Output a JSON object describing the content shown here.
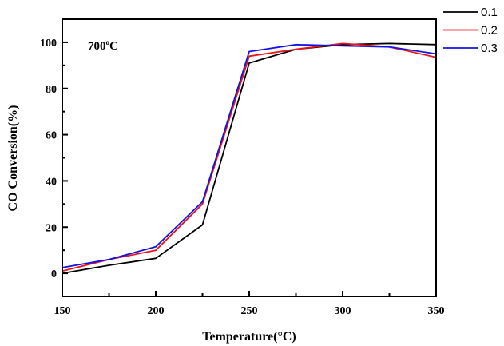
{
  "chart_data": {
    "type": "line",
    "title": "",
    "annotation": "700°C",
    "annotation_parts": {
      "base": "700",
      "sup": "o",
      "unit": "C"
    },
    "xlabel": "Temperature(°C)",
    "xlabel_parts": {
      "base": "Temperature(",
      "sup": "o",
      "unit": "C)"
    },
    "ylabel": "CO Conversion(%)",
    "xlim": [
      150,
      350
    ],
    "ylim": [
      -10,
      110
    ],
    "xticks": [
      150,
      200,
      250,
      300,
      350
    ],
    "xminor": [
      175,
      225,
      275,
      325
    ],
    "yticks": [
      0,
      20,
      40,
      60,
      80,
      100
    ],
    "yminor": [
      10,
      30,
      50,
      70,
      90
    ],
    "grid": false,
    "legend_position": "top-right-outside",
    "x": [
      150,
      175,
      200,
      225,
      250,
      275,
      300,
      325,
      350
    ],
    "series": [
      {
        "name": "0.1",
        "color": "#000000",
        "values": [
          0,
          3.5,
          6.5,
          21,
          91,
          97,
          99,
          99.5,
          99
        ]
      },
      {
        "name": "0.2",
        "color": "#e8141c",
        "values": [
          1,
          6,
          10,
          30,
          94,
          97,
          99.5,
          98,
          93.5
        ]
      },
      {
        "name": "0.3",
        "color": "#1414e0",
        "values": [
          2.5,
          6,
          11.5,
          31,
          96,
          99,
          98.5,
          98,
          95
        ]
      }
    ]
  }
}
